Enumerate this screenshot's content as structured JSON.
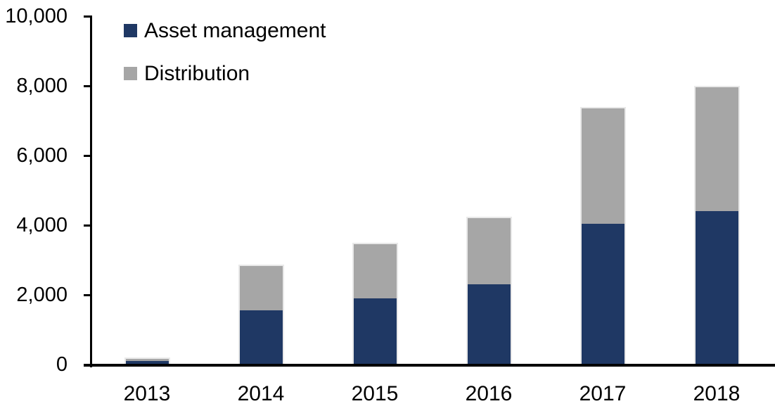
{
  "chart_data": {
    "type": "bar",
    "stacked": true,
    "title": "",
    "categories": [
      "2013",
      "2014",
      "2015",
      "2016",
      "2017",
      "2018"
    ],
    "series": [
      {
        "name": "Asset management",
        "color": "#1F3864",
        "values": [
          100,
          1550,
          1900,
          2300,
          4050,
          4400
        ]
      },
      {
        "name": "Distribution",
        "color": "#A6A6A6",
        "values": [
          100,
          1320,
          1600,
          1950,
          3350,
          3600
        ]
      }
    ],
    "totals": [
      200,
      2870,
      3500,
      4250,
      7400,
      8000
    ],
    "y_axis": {
      "min": 0,
      "max": 10000,
      "tick_interval": 2000,
      "tick_values": [
        0,
        2000,
        4000,
        6000,
        8000,
        10000
      ],
      "tick_labels": [
        "0",
        "2,000",
        "4,000",
        "6,000",
        "8,000",
        "10,000"
      ]
    },
    "x_axis_label": "",
    "y_axis_label": "",
    "legend_position": "top-left",
    "grid": false
  },
  "colors": {
    "asset_management": "#1F3864",
    "distribution": "#A6A6A6",
    "axis": "#000000",
    "text": "#000000",
    "background": "#FFFFFF"
  }
}
